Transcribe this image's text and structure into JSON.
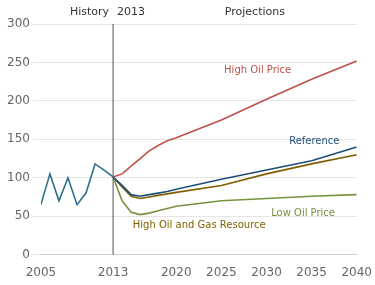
{
  "chart_data": {
    "type": "line",
    "series": [
      {
        "name": "History",
        "color": "#2e6e8e",
        "x": [
          2005,
          2006,
          2007,
          2008,
          2009,
          2010,
          2011,
          2012,
          2013
        ],
        "values": [
          65,
          105,
          70,
          100,
          65,
          80,
          118,
          110,
          101
        ]
      },
      {
        "name": "High Oil Price",
        "color": "#c0504d",
        "x": [
          2013,
          2014,
          2015,
          2016,
          2017,
          2018,
          2019,
          2020,
          2025,
          2030,
          2035,
          2040
        ],
        "values": [
          101,
          105,
          115,
          125,
          135,
          142,
          148,
          152,
          175,
          202,
          228,
          252
        ]
      },
      {
        "name": "Reference",
        "color": "#1f4e79",
        "x": [
          2013,
          2014,
          2015,
          2016,
          2017,
          2018,
          2019,
          2020,
          2025,
          2030,
          2035,
          2040
        ],
        "values": [
          101,
          90,
          78,
          76,
          78,
          80,
          82,
          85,
          98,
          110,
          122,
          140
        ]
      },
      {
        "name": "Low Oil Price",
        "color": "#76923c",
        "x": [
          2013,
          2014,
          2015,
          2016,
          2017,
          2018,
          2019,
          2020,
          2025,
          2030,
          2035,
          2040
        ],
        "values": [
          101,
          70,
          55,
          52,
          54,
          57,
          60,
          63,
          70,
          73,
          76,
          78
        ]
      },
      {
        "name": "High Oil and Gas Resource",
        "color": "#7f6000",
        "x": [
          2013,
          2014,
          2015,
          2016,
          2017,
          2018,
          2019,
          2020,
          2025,
          2030,
          2035,
          2040
        ],
        "values": [
          101,
          88,
          76,
          73,
          75,
          77,
          79,
          81,
          90,
          105,
          118,
          130
        ]
      }
    ],
    "annotations": [
      {
        "text": "2013"
      },
      {
        "text": "Projections"
      }
    ],
    "vlines": [
      2013
    ],
    "xlim": [
      2005,
      2040
    ],
    "xticks": [
      2005,
      2013,
      2020,
      2025,
      2030,
      2035,
      2040
    ],
    "ylim": [
      0,
      300
    ],
    "yticks": [
      0,
      50,
      100,
      150,
      200,
      250,
      300
    ],
    "grid": true
  }
}
